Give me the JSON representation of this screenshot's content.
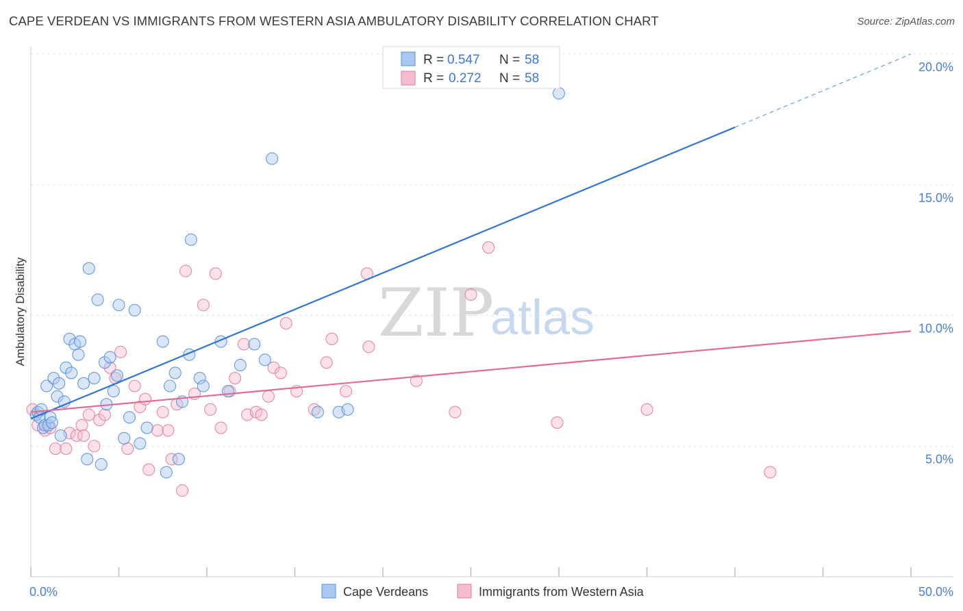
{
  "title": "CAPE VERDEAN VS IMMIGRANTS FROM WESTERN ASIA AMBULATORY DISABILITY CORRELATION CHART",
  "source": "Source: ZipAtlas.com",
  "watermark": {
    "zip": "ZIP",
    "atlas": "atlas"
  },
  "legend": {
    "r_label": "R =",
    "n_label": "N =",
    "rows": [
      {
        "r": "0.547",
        "n": "58"
      },
      {
        "r": "0.272",
        "n": "58"
      }
    ]
  },
  "colors": {
    "blue_fill": "#a9c8f0",
    "blue_stroke": "#5a8fd6",
    "blue_line": "#2f74cf",
    "pink_fill": "#f5bcd0",
    "pink_stroke": "#e07ea0",
    "pink_line": "#e46a95"
  },
  "chart_data": {
    "type": "scatter",
    "title": "CAPE VERDEAN VS IMMIGRANTS FROM WESTERN ASIA AMBULATORY DISABILITY CORRELATION CHART",
    "xlabel": "",
    "ylabel": "Ambulatory Disability",
    "xlim": [
      0,
      50
    ],
    "ylim": [
      0,
      20.6
    ],
    "x_tick_labels": [
      "0.0%",
      "50.0%"
    ],
    "y_ticks": [
      5,
      10,
      15,
      20
    ],
    "y_tick_labels": [
      "5.0%",
      "10.0%",
      "15.0%",
      "20.0%"
    ],
    "grid": true,
    "legend_position": "bottom",
    "series": [
      {
        "name": "Cape Verdeans",
        "color": "#5a8fd6",
        "r": 0.547,
        "n": 58,
        "trend": {
          "x0": 0,
          "y0": 6.05,
          "x1": 40,
          "y1": 17.2,
          "dashed_to_x": 50,
          "dashed_to_y": 20.0
        },
        "points": [
          [
            0.3,
            6.2
          ],
          [
            0.4,
            6.3
          ],
          [
            0.5,
            6.1
          ],
          [
            0.7,
            5.7
          ],
          [
            0.8,
            5.8
          ],
          [
            0.9,
            7.3
          ],
          [
            1.0,
            5.8
          ],
          [
            1.1,
            6.1
          ],
          [
            1.3,
            7.6
          ],
          [
            1.5,
            6.9
          ],
          [
            1.6,
            7.4
          ],
          [
            1.7,
            5.4
          ],
          [
            1.9,
            6.7
          ],
          [
            2.0,
            8.0
          ],
          [
            2.2,
            9.1
          ],
          [
            2.3,
            7.8
          ],
          [
            2.5,
            8.9
          ],
          [
            2.7,
            8.5
          ],
          [
            2.8,
            9.0
          ],
          [
            3.0,
            7.4
          ],
          [
            3.2,
            4.5
          ],
          [
            3.3,
            11.8
          ],
          [
            3.6,
            7.6
          ],
          [
            3.8,
            10.6
          ],
          [
            4.0,
            4.3
          ],
          [
            4.2,
            8.2
          ],
          [
            4.3,
            6.6
          ],
          [
            4.5,
            8.4
          ],
          [
            4.7,
            7.1
          ],
          [
            4.9,
            7.7
          ],
          [
            5.0,
            10.4
          ],
          [
            5.3,
            5.3
          ],
          [
            5.6,
            6.1
          ],
          [
            5.9,
            10.2
          ],
          [
            6.2,
            5.1
          ],
          [
            6.6,
            5.7
          ],
          [
            7.5,
            9.0
          ],
          [
            7.7,
            4.0
          ],
          [
            7.9,
            7.3
          ],
          [
            8.2,
            7.8
          ],
          [
            8.4,
            4.5
          ],
          [
            8.6,
            6.7
          ],
          [
            9.0,
            8.5
          ],
          [
            9.1,
            12.9
          ],
          [
            9.6,
            7.6
          ],
          [
            9.8,
            7.3
          ],
          [
            10.8,
            9.0
          ],
          [
            11.2,
            7.1
          ],
          [
            11.9,
            8.1
          ],
          [
            12.7,
            8.9
          ],
          [
            13.3,
            8.3
          ],
          [
            13.7,
            16.0
          ],
          [
            16.3,
            6.3
          ],
          [
            17.5,
            6.3
          ],
          [
            18.0,
            6.4
          ],
          [
            30.0,
            18.5
          ],
          [
            0.6,
            6.4
          ],
          [
            1.2,
            5.9
          ]
        ]
      },
      {
        "name": "Immigrants from Western Asia",
        "color": "#e07ea0",
        "r": 0.272,
        "n": 58,
        "trend": {
          "x0": 0,
          "y0": 6.3,
          "x1": 50,
          "y1": 9.4
        },
        "points": [
          [
            0.1,
            6.4
          ],
          [
            0.4,
            5.8
          ],
          [
            0.8,
            5.6
          ],
          [
            1.1,
            5.7
          ],
          [
            1.4,
            4.9
          ],
          [
            2.0,
            4.9
          ],
          [
            2.2,
            5.5
          ],
          [
            2.6,
            5.4
          ],
          [
            2.9,
            5.8
          ],
          [
            3.3,
            6.2
          ],
          [
            3.6,
            5.0
          ],
          [
            3.9,
            6.0
          ],
          [
            4.2,
            6.2
          ],
          [
            4.5,
            8.0
          ],
          [
            4.8,
            7.6
          ],
          [
            5.1,
            8.6
          ],
          [
            5.5,
            4.9
          ],
          [
            5.9,
            7.3
          ],
          [
            6.2,
            6.5
          ],
          [
            6.5,
            6.8
          ],
          [
            6.7,
            4.1
          ],
          [
            7.2,
            5.6
          ],
          [
            7.5,
            6.3
          ],
          [
            7.8,
            5.6
          ],
          [
            8.0,
            4.5
          ],
          [
            8.3,
            6.6
          ],
          [
            8.6,
            3.3
          ],
          [
            8.8,
            11.7
          ],
          [
            9.3,
            7.0
          ],
          [
            9.8,
            10.4
          ],
          [
            10.2,
            6.4
          ],
          [
            10.5,
            11.6
          ],
          [
            10.8,
            5.7
          ],
          [
            11.3,
            7.1
          ],
          [
            11.6,
            7.6
          ],
          [
            12.1,
            8.9
          ],
          [
            12.3,
            6.2
          ],
          [
            12.8,
            6.3
          ],
          [
            13.1,
            6.2
          ],
          [
            13.5,
            6.9
          ],
          [
            13.8,
            8.0
          ],
          [
            14.2,
            7.8
          ],
          [
            14.5,
            9.7
          ],
          [
            15.1,
            7.1
          ],
          [
            16.1,
            6.4
          ],
          [
            16.8,
            8.2
          ],
          [
            17.1,
            9.1
          ],
          [
            17.9,
            7.1
          ],
          [
            19.1,
            11.6
          ],
          [
            19.2,
            8.8
          ],
          [
            21.9,
            7.5
          ],
          [
            24.1,
            6.3
          ],
          [
            25.0,
            10.8
          ],
          [
            26.0,
            12.6
          ],
          [
            29.9,
            5.9
          ],
          [
            35.0,
            6.4
          ],
          [
            42.0,
            4.0
          ],
          [
            3.0,
            5.4
          ]
        ]
      }
    ]
  },
  "bottom_legend": [
    {
      "label": "Cape Verdeans"
    },
    {
      "label": "Immigrants from Western Asia"
    }
  ]
}
